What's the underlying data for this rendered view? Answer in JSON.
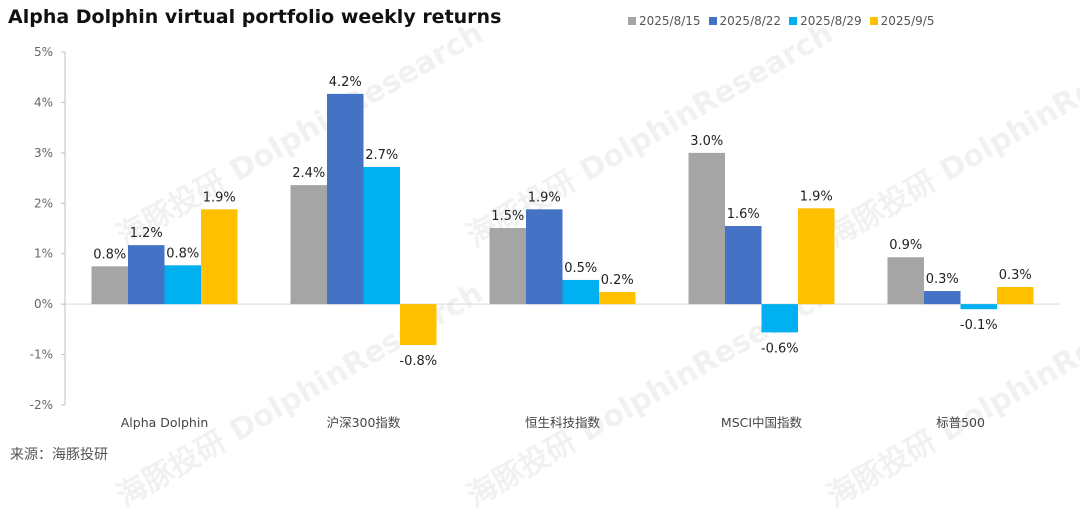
{
  "watermark": "海豚投研 DolphinResearch",
  "chart_data": {
    "type": "bar",
    "title": "Alpha Dolphin virtual portfolio weekly returns",
    "categories": [
      "Alpha Dolphin",
      "沪深300指数",
      "恒生科技指数",
      "MSCI中国指数",
      "标普500"
    ],
    "series": [
      {
        "name": "2025/8/15",
        "color": "#a5a5a5",
        "values": [
          0.75,
          2.36,
          1.51,
          3.0,
          0.93
        ],
        "labels": [
          "0.8%",
          "2.4%",
          "1.5%",
          "3.0%",
          "0.9%"
        ]
      },
      {
        "name": "2025/8/22",
        "color": "#4472c4",
        "values": [
          1.17,
          4.17,
          1.88,
          1.55,
          0.26
        ],
        "labels": [
          "1.2%",
          "4.2%",
          "1.9%",
          "1.6%",
          "0.3%"
        ]
      },
      {
        "name": "2025/8/29",
        "color": "#00b0f0",
        "values": [
          0.77,
          2.72,
          0.48,
          -0.56,
          -0.1
        ],
        "labels": [
          "0.8%",
          "2.7%",
          "0.5%",
          "-0.6%",
          "-0.1%"
        ]
      },
      {
        "name": "2025/9/5",
        "color": "#ffc000",
        "values": [
          1.88,
          -0.81,
          0.24,
          1.9,
          0.34
        ],
        "labels": [
          "1.9%",
          "-0.8%",
          "0.2%",
          "1.9%",
          "0.3%"
        ]
      }
    ],
    "ylim": [
      -2,
      5
    ],
    "yticks": [
      "-2%",
      "-1%",
      "0%",
      "1%",
      "2%",
      "3%",
      "4%",
      "5%"
    ],
    "ytick_values": [
      -2,
      -1,
      0,
      1,
      2,
      3,
      4,
      5
    ],
    "xlabel": "",
    "ylabel": "",
    "grid": false,
    "legend_position": "top-right"
  },
  "source": "来源：海豚投研"
}
